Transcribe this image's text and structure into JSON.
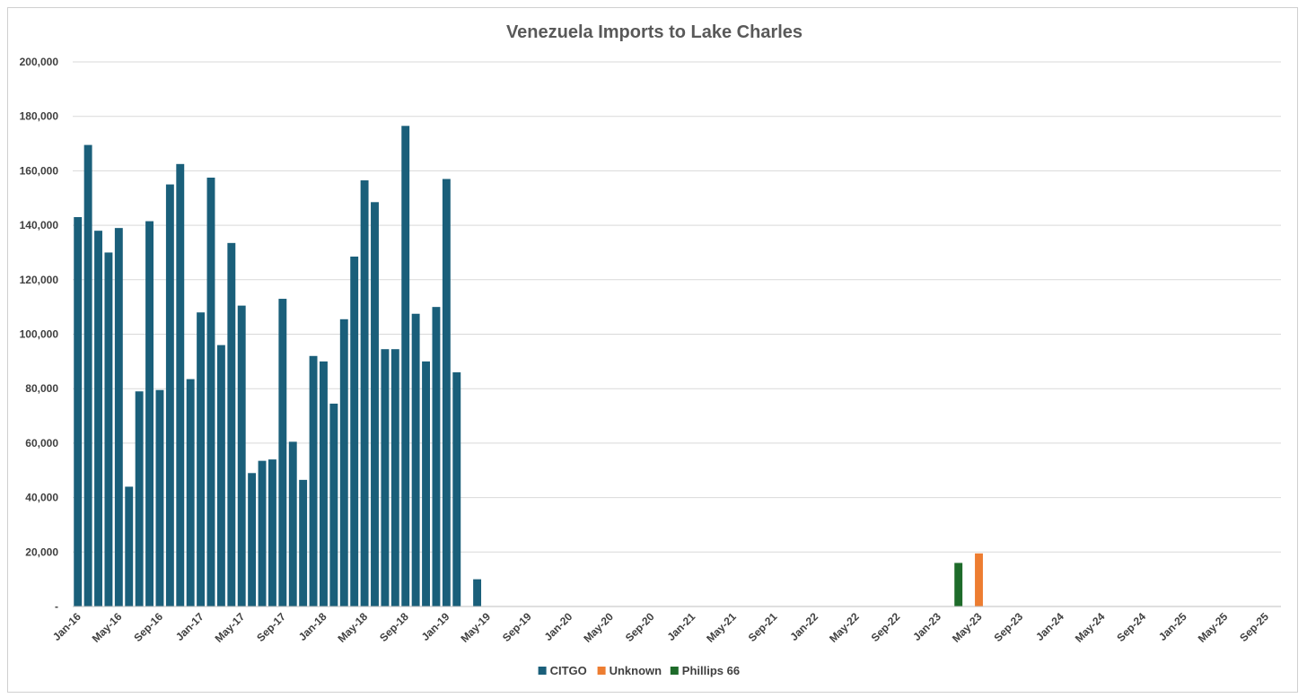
{
  "chart_data": {
    "type": "bar",
    "title": "Venezuela Imports to Lake Charles",
    "xlabel": "",
    "ylabel": "",
    "ylim": [
      0,
      200000
    ],
    "ytick_values": [
      0,
      20000,
      40000,
      60000,
      80000,
      100000,
      120000,
      140000,
      160000,
      180000,
      200000
    ],
    "ytick_labels": [
      "-",
      "20,000",
      "40,000",
      "60,000",
      "80,000",
      "100,000",
      "120,000",
      "140,000",
      "160,000",
      "180,000",
      "200,000"
    ],
    "start_month": "Jan-16",
    "month_count": 118,
    "xtick_labels": [
      "Jan-16",
      "May-16",
      "Sep-16",
      "Jan-17",
      "May-17",
      "Sep-17",
      "Jan-18",
      "May-18",
      "Sep-18",
      "Jan-19",
      "May-19",
      "Sep-19",
      "Jan-20",
      "May-20",
      "Sep-20",
      "Jan-21",
      "May-21",
      "Sep-21",
      "Jan-22",
      "May-22",
      "Sep-22",
      "Jan-23",
      "May-23",
      "Sep-23",
      "Jan-24",
      "May-24",
      "Sep-24",
      "Jan-25",
      "May-25",
      "Sep-25"
    ],
    "grid": true,
    "legend_position": "bottom",
    "series": [
      {
        "name": "CITGO",
        "color": "#1a5f7a",
        "points": [
          {
            "x": "Jan-16",
            "y": 143000
          },
          {
            "x": "Feb-16",
            "y": 169500
          },
          {
            "x": "Mar-16",
            "y": 138000
          },
          {
            "x": "Apr-16",
            "y": 130000
          },
          {
            "x": "May-16",
            "y": 139000
          },
          {
            "x": "Jun-16",
            "y": 44000
          },
          {
            "x": "Jul-16",
            "y": 79000
          },
          {
            "x": "Aug-16",
            "y": 141500
          },
          {
            "x": "Sep-16",
            "y": 79500
          },
          {
            "x": "Oct-16",
            "y": 155000
          },
          {
            "x": "Nov-16",
            "y": 162500
          },
          {
            "x": "Dec-16",
            "y": 83500
          },
          {
            "x": "Jan-17",
            "y": 108000
          },
          {
            "x": "Feb-17",
            "y": 157500
          },
          {
            "x": "Mar-17",
            "y": 96000
          },
          {
            "x": "Apr-17",
            "y": 133500
          },
          {
            "x": "May-17",
            "y": 110500
          },
          {
            "x": "Jun-17",
            "y": 49000
          },
          {
            "x": "Jul-17",
            "y": 53500
          },
          {
            "x": "Aug-17",
            "y": 54000
          },
          {
            "x": "Sep-17",
            "y": 113000
          },
          {
            "x": "Oct-17",
            "y": 60500
          },
          {
            "x": "Nov-17",
            "y": 46500
          },
          {
            "x": "Dec-17",
            "y": 92000
          },
          {
            "x": "Jan-18",
            "y": 90000
          },
          {
            "x": "Feb-18",
            "y": 74500
          },
          {
            "x": "Mar-18",
            "y": 105500
          },
          {
            "x": "Apr-18",
            "y": 128500
          },
          {
            "x": "May-18",
            "y": 156500
          },
          {
            "x": "Jun-18",
            "y": 148500
          },
          {
            "x": "Jul-18",
            "y": 94500
          },
          {
            "x": "Aug-18",
            "y": 94500
          },
          {
            "x": "Sep-18",
            "y": 176500
          },
          {
            "x": "Oct-18",
            "y": 107500
          },
          {
            "x": "Nov-18",
            "y": 90000
          },
          {
            "x": "Dec-18",
            "y": 110000
          },
          {
            "x": "Jan-19",
            "y": 157000
          },
          {
            "x": "Feb-19",
            "y": 86000
          },
          {
            "x": "Apr-19",
            "y": 10000
          }
        ]
      },
      {
        "name": "Unknown",
        "color": "#ed7d31",
        "points": [
          {
            "x": "May-23",
            "y": 19500
          }
        ]
      },
      {
        "name": "Phillips 66",
        "color": "#1e6b2a",
        "points": [
          {
            "x": "Mar-23",
            "y": 16000
          }
        ]
      }
    ]
  }
}
